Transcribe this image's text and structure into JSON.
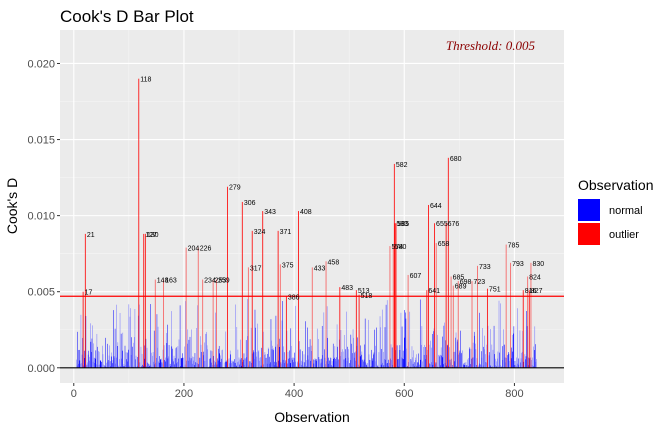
{
  "chart_data": {
    "type": "bar",
    "title": "Cook's D Bar Plot",
    "xlabel": "Observation",
    "ylabel": "Cook's D",
    "xlim": [
      -25,
      890
    ],
    "ylim": [
      -0.001,
      0.0222
    ],
    "x_ticks": [
      0,
      200,
      400,
      600,
      800
    ],
    "y_ticks": [
      0.0,
      0.005,
      0.01,
      0.015,
      0.02
    ],
    "y_tick_labels": [
      "0.000",
      "0.005",
      "0.010",
      "0.015",
      "0.020"
    ],
    "threshold": 0.0047,
    "threshold_label": "Threshold: 0.005",
    "legend_title": "Observation",
    "legend_placement": "right",
    "grid": true,
    "series": [
      {
        "name": "normal",
        "color": "#0000FF"
      },
      {
        "name": "outlier",
        "color": "#FF0000"
      }
    ],
    "outliers": [
      {
        "obs": 17,
        "d": 0.005
      },
      {
        "obs": 21,
        "d": 0.0088
      },
      {
        "obs": 118,
        "d": 0.019
      },
      {
        "obs": 127,
        "d": 0.0088
      },
      {
        "obs": 130,
        "d": 0.0088
      },
      {
        "obs": 148,
        "d": 0.0058
      },
      {
        "obs": 163,
        "d": 0.0058
      },
      {
        "obs": 204,
        "d": 0.0079
      },
      {
        "obs": 226,
        "d": 0.0079
      },
      {
        "obs": 234,
        "d": 0.0058
      },
      {
        "obs": 253,
        "d": 0.0058
      },
      {
        "obs": 259,
        "d": 0.0058
      },
      {
        "obs": 279,
        "d": 0.0119
      },
      {
        "obs": 306,
        "d": 0.0109
      },
      {
        "obs": 317,
        "d": 0.0066
      },
      {
        "obs": 324,
        "d": 0.009
      },
      {
        "obs": 343,
        "d": 0.0103
      },
      {
        "obs": 371,
        "d": 0.009
      },
      {
        "obs": 375,
        "d": 0.0068
      },
      {
        "obs": 386,
        "d": 0.0047
      },
      {
        "obs": 408,
        "d": 0.0103
      },
      {
        "obs": 433,
        "d": 0.0066
      },
      {
        "obs": 458,
        "d": 0.007
      },
      {
        "obs": 483,
        "d": 0.0053
      },
      {
        "obs": 513,
        "d": 0.0051
      },
      {
        "obs": 518,
        "d": 0.0048
      },
      {
        "obs": 574,
        "d": 0.008
      },
      {
        "obs": 580,
        "d": 0.008
      },
      {
        "obs": 582,
        "d": 0.0134
      },
      {
        "obs": 583,
        "d": 0.0095
      },
      {
        "obs": 585,
        "d": 0.0095
      },
      {
        "obs": 607,
        "d": 0.0061
      },
      {
        "obs": 641,
        "d": 0.0051
      },
      {
        "obs": 644,
        "d": 0.0107
      },
      {
        "obs": 655,
        "d": 0.0095
      },
      {
        "obs": 658,
        "d": 0.0082
      },
      {
        "obs": 676,
        "d": 0.0095
      },
      {
        "obs": 680,
        "d": 0.0138
      },
      {
        "obs": 685,
        "d": 0.006
      },
      {
        "obs": 689,
        "d": 0.0054
      },
      {
        "obs": 698,
        "d": 0.0057
      },
      {
        "obs": 723,
        "d": 0.0057
      },
      {
        "obs": 733,
        "d": 0.0067
      },
      {
        "obs": 751,
        "d": 0.0052
      },
      {
        "obs": 785,
        "d": 0.0081
      },
      {
        "obs": 793,
        "d": 0.0069
      },
      {
        "obs": 816,
        "d": 0.0051
      },
      {
        "obs": 824,
        "d": 0.006
      },
      {
        "obs": 827,
        "d": 0.0051
      },
      {
        "obs": 830,
        "d": 0.0069
      }
    ]
  }
}
